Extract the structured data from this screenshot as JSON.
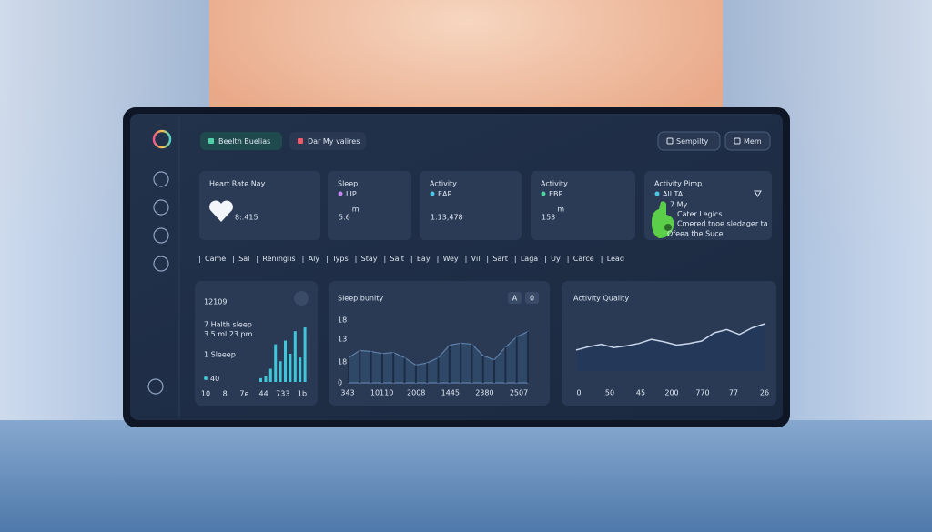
{
  "nav": {
    "tabs": [
      "Beelth Buelias",
      "Dar My valires"
    ],
    "actions": [
      "Sempilty",
      "Mem"
    ]
  },
  "stats": [
    {
      "title": "Heart Rate Nay",
      "value": "8:.415"
    },
    {
      "title": "Sleep",
      "subtitle": "LIP",
      "value": "5.6",
      "unit": "m"
    },
    {
      "title": "Activity",
      "subtitle": "EAP",
      "value": "1.13,478"
    },
    {
      "title": "Activity",
      "subtitle": "EBP",
      "value": "153",
      "unit": "m"
    },
    {
      "title": "Activity Pimp",
      "subtitle": "All TAL",
      "lines": [
        "7 My",
        "Cater Legics",
        "Cmered tnoe sledager ta",
        "Ofeea the Suce"
      ]
    }
  ],
  "filters": [
    "Came",
    "Sal",
    "Reninglis",
    "Aly",
    "Typs",
    "Stay",
    "Salt",
    "Eay",
    "Wey",
    "Vil",
    "Sart",
    "Laga",
    "Uy",
    "Carce",
    "Lead"
  ],
  "panels": [
    {
      "type": "bar",
      "value": "12109",
      "lines": [
        "7 Halth sleep",
        "3.5 ml 23 pm",
        "1 Sleeep"
      ],
      "legend": "40",
      "x_labels": [
        "10",
        "8",
        "7e",
        "44",
        "733",
        "1b"
      ],
      "values": [
        4,
        6,
        14,
        40,
        22,
        44,
        30,
        54,
        26,
        58
      ],
      "ylim": [
        0,
        60
      ],
      "color": "#3fc6d9"
    },
    {
      "type": "area-bar",
      "title": "Sleep bunity",
      "buttons": [
        "A",
        "0"
      ],
      "y_labels": [
        "18",
        "13",
        "18",
        "0"
      ],
      "x_labels": [
        "343",
        "10110",
        "2008",
        "1445",
        "2380",
        "2507"
      ],
      "values": [
        24,
        31,
        30,
        28,
        29,
        24,
        17,
        19,
        24,
        36,
        38,
        37,
        26,
        22,
        34,
        44,
        49
      ],
      "ylim": [
        0,
        60
      ],
      "color": "#5d7fa8"
    },
    {
      "type": "line",
      "title": "Activity Quality",
      "x_labels": [
        "0",
        "50",
        "45",
        "200",
        "770",
        "77",
        "26"
      ],
      "values": [
        39,
        43,
        46,
        42,
        44,
        47,
        52,
        49,
        45,
        47,
        50,
        60,
        64,
        58,
        66,
        71
      ],
      "ylim": [
        0,
        100
      ],
      "color": "#c9d6ea"
    }
  ]
}
